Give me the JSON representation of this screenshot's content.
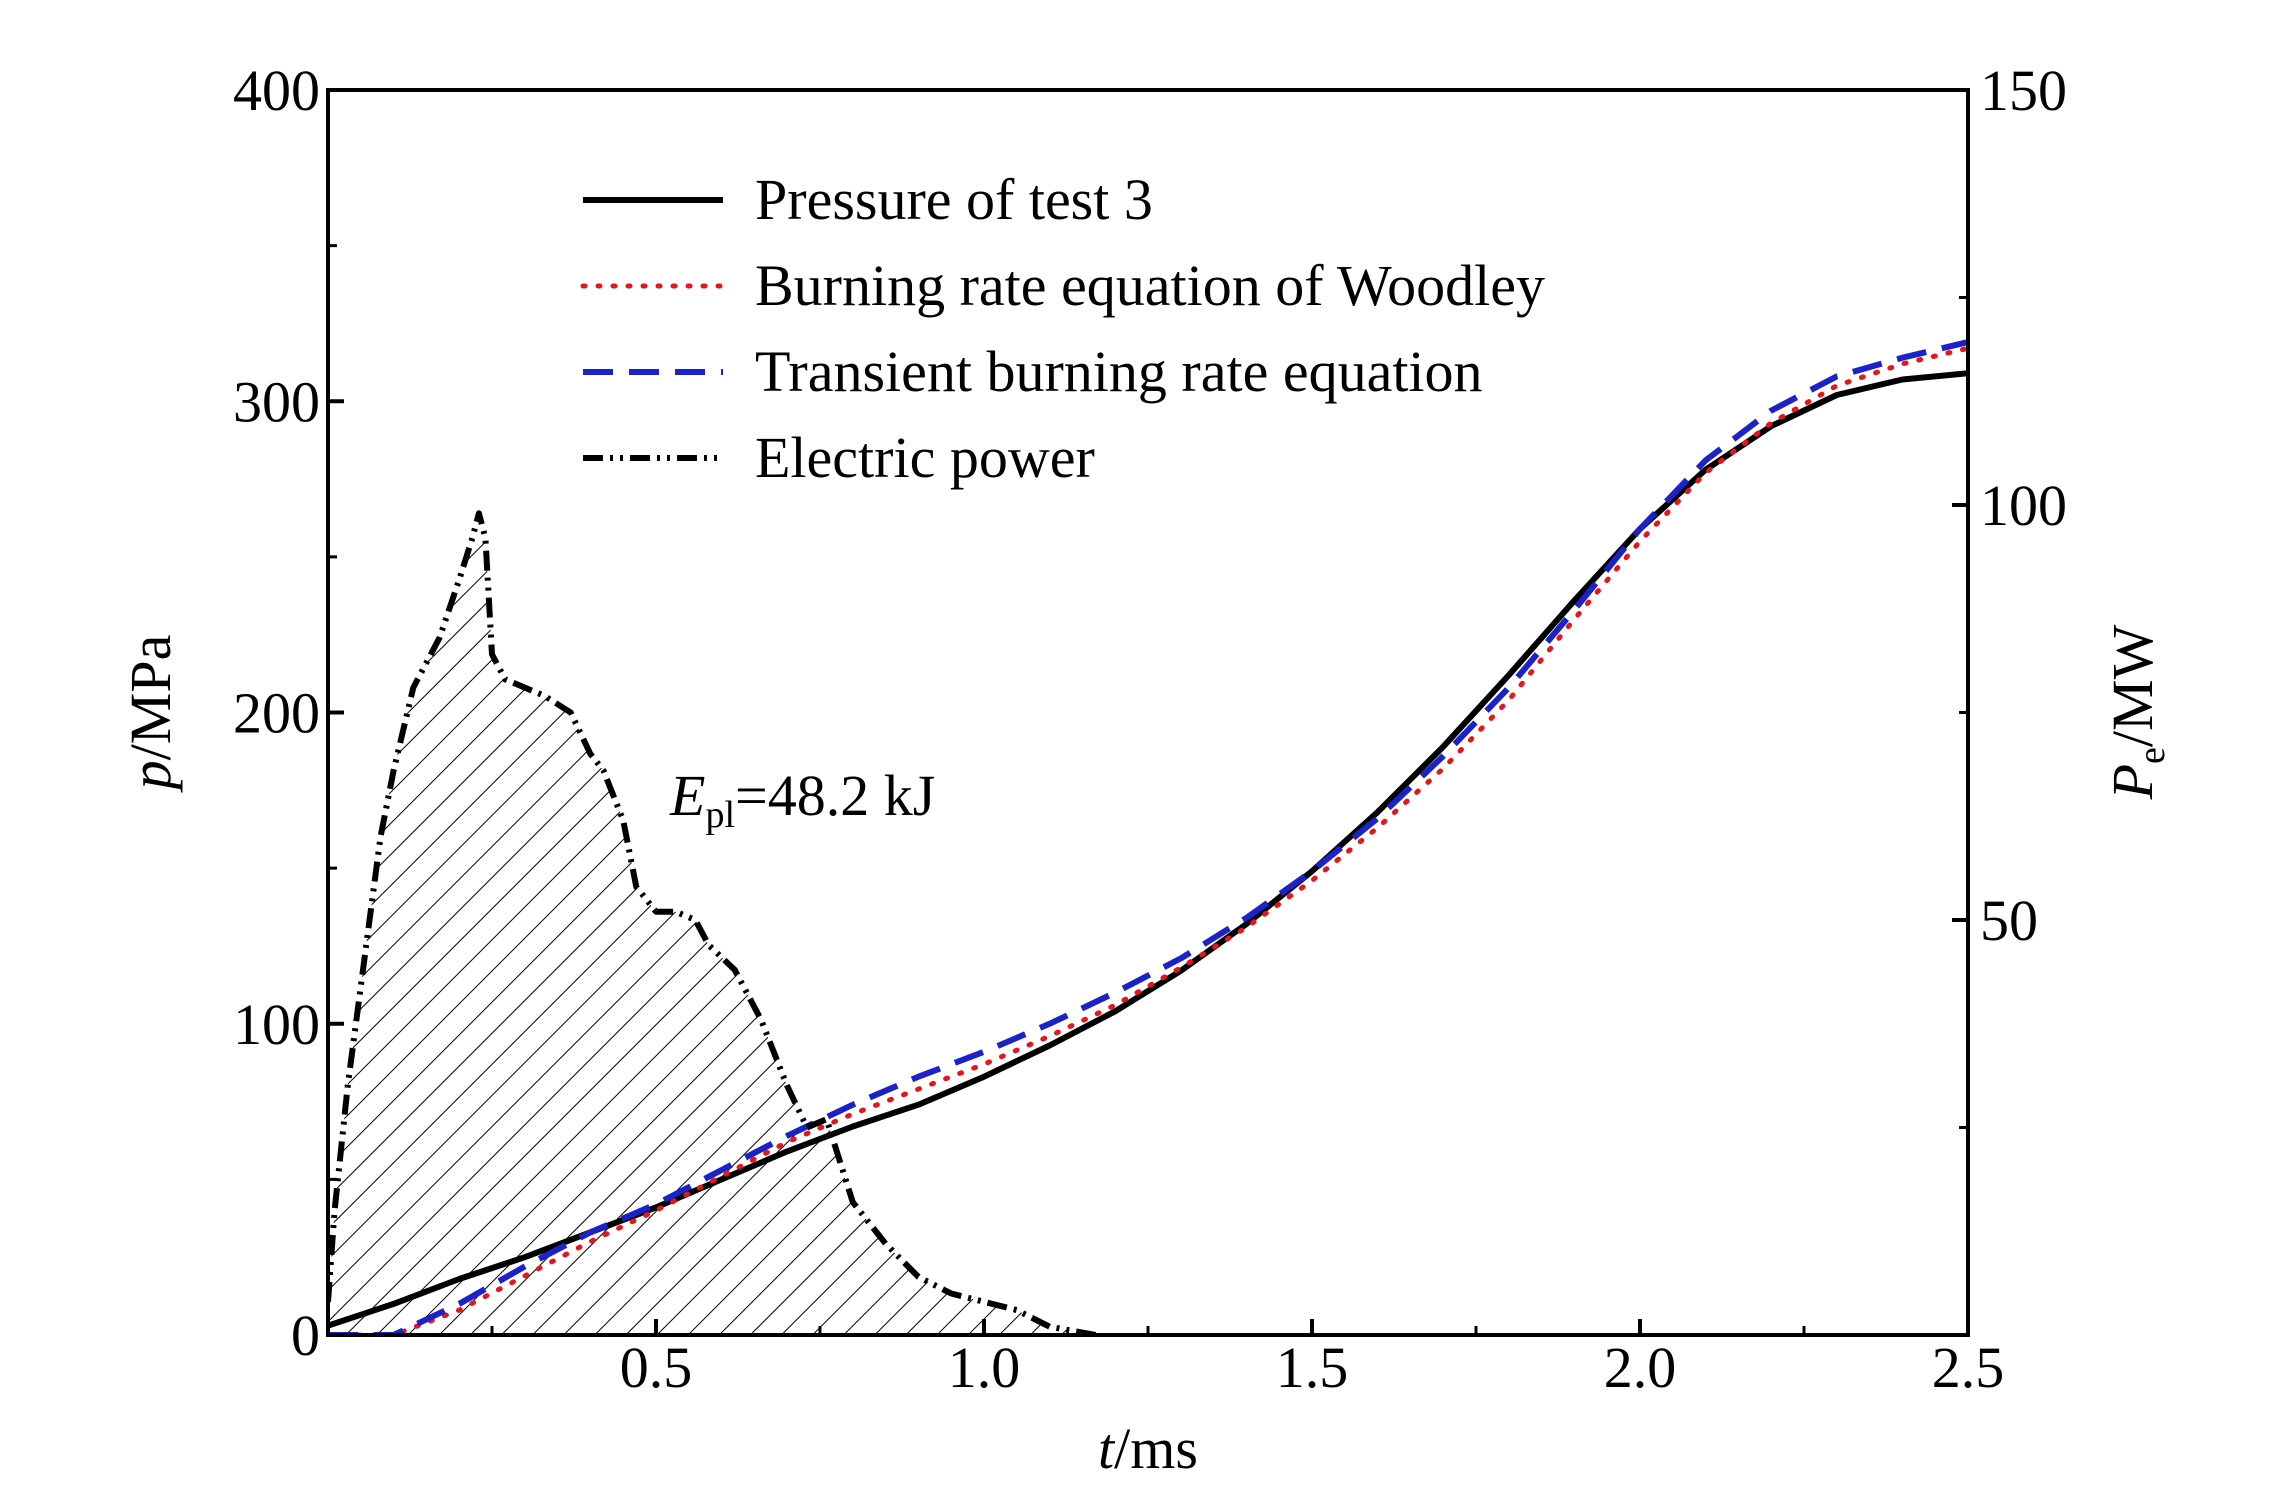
{
  "chart_data": {
    "type": "line",
    "xlabel": {
      "italic": "t",
      "unit": "/ms"
    },
    "ylabel_left": {
      "italic": "p",
      "unit": "/MPa"
    },
    "ylabel_right": {
      "italic": "P",
      "sub": "e",
      "unit": "/MW"
    },
    "xlim": [
      0,
      2.5
    ],
    "ylim_left": [
      0,
      400
    ],
    "ylim_right": [
      0,
      150
    ],
    "x_ticks": [
      "0.5",
      "1.0",
      "1.5",
      "2.0",
      "2.5"
    ],
    "y_left_ticks": [
      "0",
      "100",
      "200",
      "300",
      "400"
    ],
    "y_right_ticks": [
      "50",
      "100",
      "150"
    ],
    "legend_position": "upper-left",
    "annotation": {
      "italic": "E",
      "sub": "pl",
      "text": "=48.2 kJ"
    },
    "series": [
      {
        "name": "Pressure of test 3",
        "axis": "left",
        "style": "solid",
        "color": "#000000",
        "x": [
          0,
          0.1,
          0.2,
          0.3,
          0.4,
          0.5,
          0.6,
          0.7,
          0.8,
          0.9,
          1.0,
          1.1,
          1.2,
          1.3,
          1.4,
          1.5,
          1.6,
          1.7,
          1.8,
          1.9,
          2.0,
          2.1,
          2.2,
          2.3,
          2.4,
          2.5
        ],
        "y": [
          3,
          10,
          18,
          25,
          33,
          41,
          50,
          59,
          67,
          74,
          83,
          93,
          104,
          117,
          132,
          149,
          168,
          189,
          212,
          236,
          259,
          278,
          292,
          302,
          307,
          309
        ]
      },
      {
        "name": "Burning rate equation of Woodley",
        "axis": "left",
        "style": "dotted",
        "color": "#e8141b",
        "x": [
          0,
          0.1,
          0.2,
          0.3,
          0.4,
          0.5,
          0.6,
          0.7,
          0.8,
          0.9,
          1.0,
          1.1,
          1.2,
          1.3,
          1.4,
          1.5,
          1.6,
          1.7,
          1.8,
          1.9,
          2.0,
          2.1,
          2.2,
          2.3,
          2.4,
          2.5
        ],
        "y": [
          0,
          0,
          8,
          19,
          30,
          40,
          51,
          62,
          71,
          79,
          87,
          96,
          106,
          118,
          131,
          146,
          163,
          182,
          204,
          230,
          255,
          277,
          293,
          305,
          312,
          317
        ]
      },
      {
        "name": "Transient burning rate equation",
        "axis": "left",
        "style": "dashed",
        "color": "#1a22c8",
        "x": [
          0,
          0.1,
          0.2,
          0.3,
          0.4,
          0.5,
          0.6,
          0.7,
          0.8,
          0.9,
          1.0,
          1.1,
          1.2,
          1.3,
          1.4,
          1.5,
          1.6,
          1.7,
          1.8,
          1.9,
          2.0,
          2.1,
          2.2,
          2.3,
          2.4,
          2.5
        ],
        "y": [
          0,
          0,
          10,
          22,
          33,
          42,
          53,
          64,
          74,
          83,
          91,
          100,
          110,
          121,
          134,
          149,
          166,
          186,
          208,
          233,
          259,
          281,
          297,
          308,
          314,
          319
        ]
      },
      {
        "name": "Electric power",
        "axis": "right",
        "style": "dash-dot",
        "color": "#000000",
        "hatched": true,
        "x": [
          0,
          0.01,
          0.03,
          0.05,
          0.08,
          0.1,
          0.13,
          0.17,
          0.2,
          0.22,
          0.23,
          0.24,
          0.25,
          0.27,
          0.3,
          0.33,
          0.37,
          0.4,
          0.42,
          0.45,
          0.47,
          0.5,
          0.53,
          0.56,
          0.58,
          0.62,
          0.66,
          0.7,
          0.73,
          0.76,
          0.8,
          0.85,
          0.9,
          0.95,
          1.0,
          1.05,
          1.1,
          1.17
        ],
        "y": [
          4,
          15,
          30,
          42,
          60,
          68,
          78,
          84,
          91,
          96,
          99,
          96,
          82,
          79,
          78,
          77,
          75,
          70,
          68,
          62,
          54,
          51,
          51,
          50,
          47,
          44,
          38,
          30,
          25,
          26,
          16,
          11,
          7,
          5,
          4,
          3,
          1,
          0
        ]
      }
    ]
  }
}
